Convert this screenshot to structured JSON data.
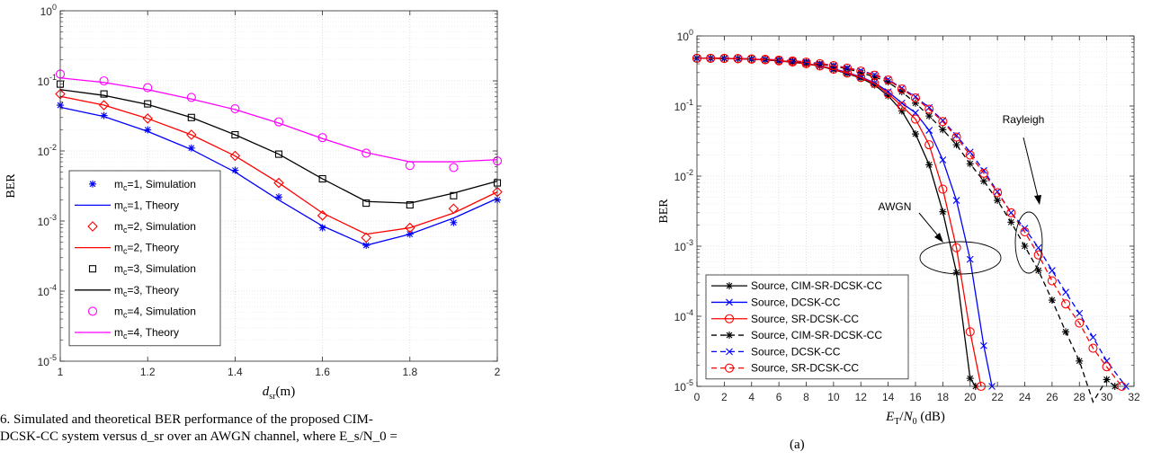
{
  "caption": {
    "line1": "6.  Simulated and theoretical BER performance of the proposed CIM-",
    "line2": "DCSK-CC system versus d_sr over an AWGN channel, where E_s/N_0 ="
  },
  "sublabel": "(a)",
  "chart_data": [
    {
      "type": "line",
      "ylabel": "BER",
      "xlabel": "d_sr(m)",
      "yscale": "log",
      "xlim": [
        1,
        2
      ],
      "ylim": [
        1e-05,
        1
      ],
      "grid": true,
      "legend_position": "bottom-left",
      "x_ticks": [
        "1",
        "1.2",
        "1.4",
        "1.6",
        "1.8",
        "2"
      ],
      "x": [
        1,
        1.1,
        1.2,
        1.3,
        1.4,
        1.5,
        1.6,
        1.7,
        1.8,
        1.9,
        2
      ],
      "series": [
        {
          "name": "m_c=1, Simulation",
          "kind": "markers",
          "marker": "asterisk",
          "color": "#0000ff",
          "values": [
            0.045,
            0.032,
            0.02,
            0.011,
            0.0053,
            0.0022,
            0.0008,
            0.00045,
            0.00065,
            0.00095,
            0.002
          ]
        },
        {
          "name": "m_c=1, Theory",
          "kind": "line",
          "color": "#0000ff",
          "values": [
            0.042,
            0.031,
            0.019,
            0.0105,
            0.005,
            0.002,
            0.00085,
            0.00045,
            0.00065,
            0.0011,
            0.0021
          ]
        },
        {
          "name": "m_c=2, Simulation",
          "kind": "markers",
          "marker": "diamond",
          "color": "#ff0000",
          "values": [
            0.065,
            0.045,
            0.029,
            0.017,
            0.0085,
            0.0035,
            0.0012,
            0.00058,
            0.0008,
            0.0015,
            0.0026
          ]
        },
        {
          "name": "m_c=2, Theory",
          "kind": "line",
          "color": "#ff0000",
          "values": [
            0.06,
            0.045,
            0.029,
            0.017,
            0.0085,
            0.0035,
            0.0013,
            0.00065,
            0.0008,
            0.0013,
            0.0026
          ]
        },
        {
          "name": "m_c=3, Simulation",
          "kind": "markers",
          "marker": "square",
          "color": "#000000",
          "values": [
            0.09,
            0.065,
            0.047,
            0.03,
            0.017,
            0.009,
            0.004,
            0.0018,
            0.0017,
            0.0023,
            0.0035
          ]
        },
        {
          "name": "m_c=3, Theory",
          "kind": "line",
          "color": "#000000",
          "values": [
            0.075,
            0.062,
            0.046,
            0.03,
            0.017,
            0.009,
            0.004,
            0.0019,
            0.0018,
            0.0025,
            0.0037
          ]
        },
        {
          "name": "m_c=4, Simulation",
          "kind": "markers",
          "marker": "circle",
          "color": "#ff00ff",
          "values": [
            0.125,
            0.1,
            0.08,
            0.058,
            0.04,
            0.026,
            0.0155,
            0.0093,
            0.0062,
            0.0058,
            0.0072
          ]
        },
        {
          "name": "m_c=4, Theory",
          "kind": "line",
          "color": "#ff00ff",
          "values": [
            0.11,
            0.095,
            0.075,
            0.055,
            0.039,
            0.025,
            0.015,
            0.0095,
            0.007,
            0.007,
            0.0075
          ]
        }
      ]
    },
    {
      "type": "line",
      "ylabel": "BER",
      "xlabel": "E_T/N_0 (dB)",
      "yscale": "log",
      "xlim": [
        0,
        32
      ],
      "ylim": [
        1e-05,
        1
      ],
      "grid": true,
      "legend_position": "bottom-left",
      "x_ticks": [
        "0",
        "2",
        "4",
        "6",
        "8",
        "10",
        "12",
        "14",
        "16",
        "18",
        "20",
        "22",
        "24",
        "26",
        "28",
        "30",
        "32"
      ],
      "annotations": [
        "AWGN",
        "Rayleigh"
      ],
      "series": [
        {
          "name": "Source, CIM-SR-DCSK-CC",
          "style": "solid",
          "marker": "asterisk",
          "color": "#000000",
          "x": [
            0,
            1,
            2,
            3,
            4,
            5,
            6,
            7,
            8,
            9,
            10,
            11,
            12,
            13,
            14,
            15,
            16,
            17,
            18,
            19,
            20,
            20.4
          ],
          "values": [
            0.48,
            0.48,
            0.477,
            0.473,
            0.465,
            0.455,
            0.44,
            0.42,
            0.4,
            0.37,
            0.33,
            0.29,
            0.25,
            0.2,
            0.14,
            0.085,
            0.04,
            0.0145,
            0.0031,
            0.00042,
            1.3e-05,
            1e-05
          ]
        },
        {
          "name": "Source, DCSK-CC",
          "style": "solid",
          "marker": "x",
          "color": "#0000ff",
          "x": [
            0,
            1,
            2,
            3,
            4,
            5,
            6,
            7,
            8,
            9,
            10,
            11,
            12,
            13,
            14,
            15,
            16,
            17,
            18,
            19,
            20,
            21,
            21.6
          ],
          "values": [
            0.48,
            0.48,
            0.478,
            0.474,
            0.467,
            0.458,
            0.445,
            0.428,
            0.405,
            0.375,
            0.34,
            0.3,
            0.26,
            0.215,
            0.16,
            0.11,
            0.08,
            0.045,
            0.017,
            0.0045,
            0.00065,
            3.8e-05,
            1e-05
          ]
        },
        {
          "name": "Source, SR-DCSK-CC",
          "style": "solid",
          "marker": "circle",
          "color": "#ff0000",
          "x": [
            0,
            1,
            2,
            3,
            4,
            5,
            6,
            7,
            8,
            9,
            10,
            11,
            12,
            13,
            14,
            15,
            16,
            17,
            18,
            19,
            20,
            20.8
          ],
          "values": [
            0.48,
            0.48,
            0.477,
            0.473,
            0.466,
            0.456,
            0.442,
            0.424,
            0.402,
            0.373,
            0.335,
            0.295,
            0.255,
            0.21,
            0.15,
            0.1,
            0.065,
            0.028,
            0.0065,
            0.00095,
            6e-05,
            1e-05
          ]
        },
        {
          "name": "Source, CIM-SR-DCSK-CC",
          "style": "dashed",
          "marker": "asterisk",
          "color": "#000000",
          "x": [
            0,
            1,
            2,
            3,
            4,
            5,
            6,
            7,
            8,
            9,
            10,
            11,
            12,
            13,
            14,
            15,
            16,
            17,
            18,
            19,
            20,
            21,
            22,
            23,
            24,
            25,
            26,
            27,
            28,
            29,
            30,
            30.6
          ],
          "values": [
            0.48,
            0.48,
            0.478,
            0.475,
            0.469,
            0.461,
            0.45,
            0.436,
            0.418,
            0.395,
            0.37,
            0.34,
            0.3,
            0.26,
            0.22,
            0.16,
            0.11,
            0.072,
            0.046,
            0.028,
            0.015,
            0.0085,
            0.0045,
            0.0022,
            0.001,
            0.00045,
            0.00017,
            6e-05,
            2.3e-05,
            6e-06,
            1.25e-05,
            1e-05
          ]
        },
        {
          "name": "Source, DCSK-CC",
          "style": "dashed",
          "marker": "x",
          "color": "#0000ff",
          "x": [
            0,
            1,
            2,
            3,
            4,
            5,
            6,
            7,
            8,
            9,
            10,
            11,
            12,
            13,
            14,
            15,
            16,
            17,
            18,
            19,
            20,
            21,
            22,
            23,
            24,
            25,
            26,
            27,
            28,
            29,
            30,
            31.4
          ],
          "values": [
            0.48,
            0.48,
            0.479,
            0.476,
            0.471,
            0.464,
            0.454,
            0.442,
            0.426,
            0.405,
            0.38,
            0.35,
            0.32,
            0.28,
            0.24,
            0.18,
            0.135,
            0.095,
            0.062,
            0.038,
            0.022,
            0.012,
            0.006,
            0.003,
            0.0018,
            0.00095,
            0.00045,
            0.00022,
            0.00011,
            5e-05,
            2.3e-05,
            1e-05
          ]
        },
        {
          "name": "Source, SR-DCSK-CC",
          "style": "dashed",
          "marker": "circle",
          "color": "#ff0000",
          "x": [
            0,
            1,
            2,
            3,
            4,
            5,
            6,
            7,
            8,
            9,
            10,
            11,
            12,
            13,
            14,
            15,
            16,
            17,
            18,
            19,
            20,
            21,
            22,
            23,
            24,
            25,
            26,
            27,
            28,
            29,
            30,
            31.1
          ],
          "values": [
            0.48,
            0.48,
            0.479,
            0.476,
            0.47,
            0.463,
            0.452,
            0.44,
            0.423,
            0.402,
            0.377,
            0.347,
            0.315,
            0.275,
            0.235,
            0.175,
            0.13,
            0.09,
            0.06,
            0.036,
            0.02,
            0.011,
            0.0058,
            0.003,
            0.0016,
            0.00075,
            0.00032,
            0.00015,
            8e-05,
            3.5e-05,
            1.9e-05,
            1e-05
          ]
        }
      ]
    }
  ]
}
